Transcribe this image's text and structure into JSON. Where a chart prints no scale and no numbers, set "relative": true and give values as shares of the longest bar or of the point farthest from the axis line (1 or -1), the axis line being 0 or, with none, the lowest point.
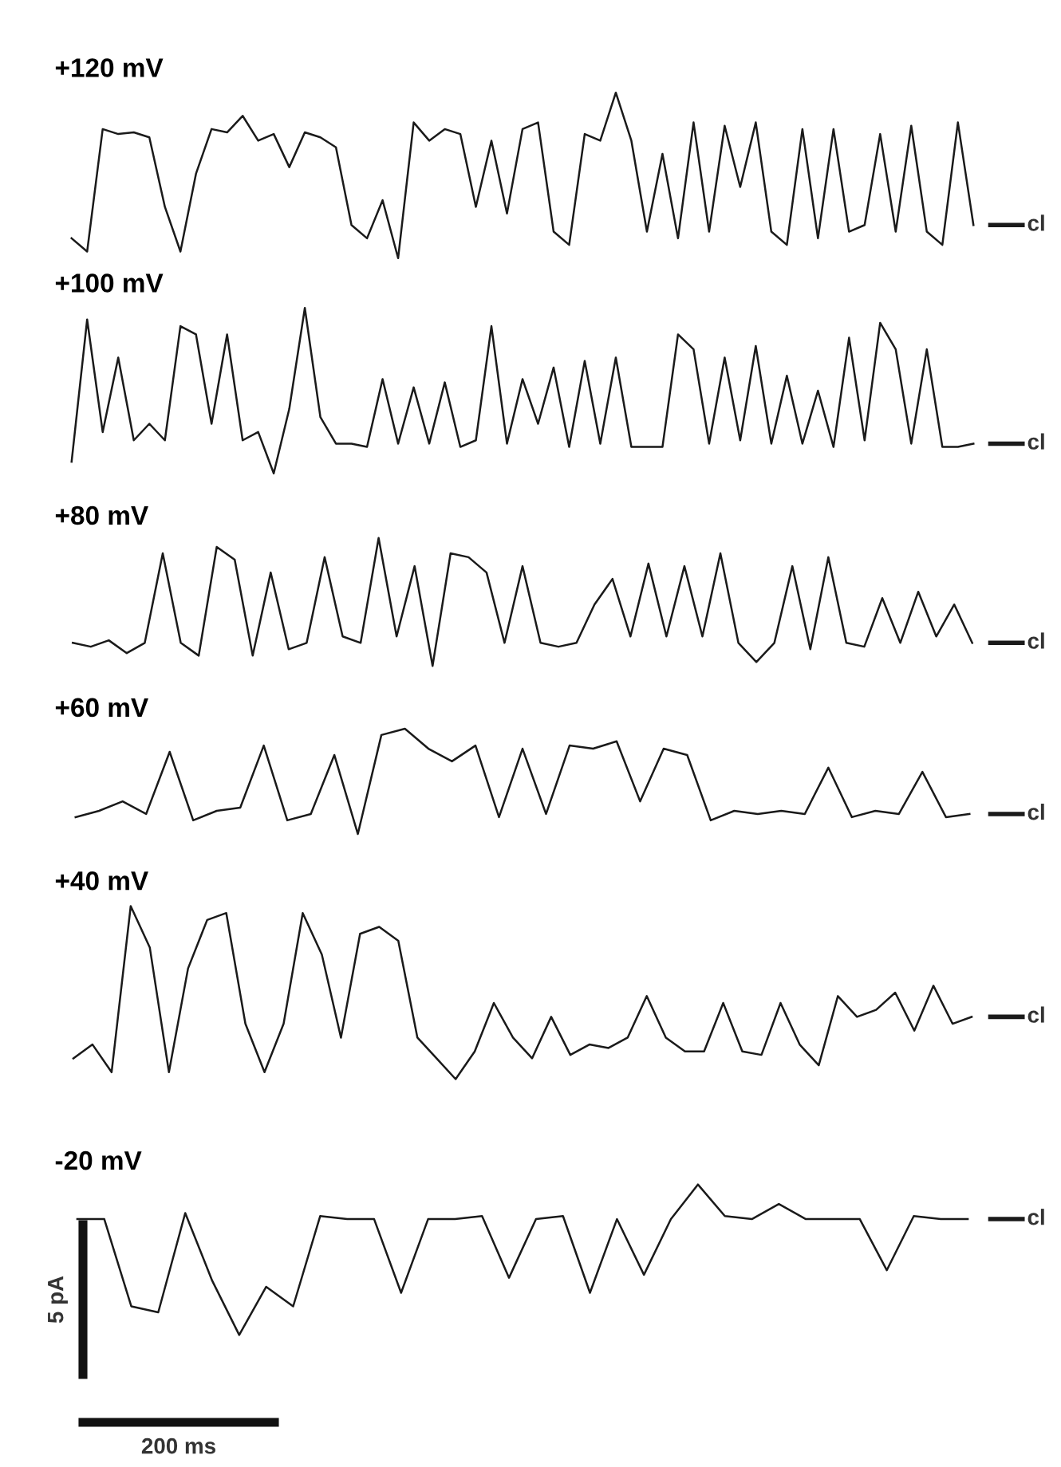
{
  "chart_data": [
    {
      "type": "line",
      "relative": true,
      "title": "+120 mV",
      "annotations": [
        "cl"
      ],
      "categories": [
        null,
        null,
        null,
        null,
        null,
        null,
        null,
        null,
        null,
        null,
        null,
        null,
        null,
        null,
        null,
        null,
        null,
        null,
        null,
        null,
        null,
        null,
        null,
        null,
        null,
        null,
        null,
        null,
        null,
        null,
        null,
        null,
        null,
        null,
        null,
        null,
        null,
        null,
        null,
        null,
        null,
        null,
        null,
        null,
        null,
        null,
        null,
        null,
        null,
        null,
        null,
        null,
        null,
        null,
        null,
        null,
        null,
        null,
        null
      ],
      "series": [
        {
          "color": "#1a1a1a",
          "values": [
            0.12,
            0.04,
            0.78,
            0.75,
            0.76,
            0.73,
            0.31,
            0.04,
            0.51,
            0.78,
            0.76,
            0.86,
            0.71,
            0.75,
            0.55,
            0.76,
            0.73,
            0.67,
            0.2,
            0.12,
            0.35,
            0,
            0.82,
            0.71,
            0.78,
            0.75,
            0.31,
            0.71,
            0.27,
            0.78,
            0.82,
            0.16,
            0.08,
            0.75,
            0.71,
            1.0,
            0.71,
            0.16,
            0.63,
            0.12,
            0.82,
            0.16,
            0.8,
            0.43,
            0.82,
            0.16,
            0.08,
            0.78,
            0.12,
            0.78,
            0.16,
            0.2,
            0.75,
            0.16,
            0.8,
            0.16,
            0.08,
            0.82,
            0.2
          ]
        }
      ]
    },
    {
      "type": "line",
      "relative": true,
      "title": "+100 mV",
      "annotations": [
        "cl"
      ],
      "categories": [
        null,
        null,
        null,
        null,
        null,
        null,
        null,
        null,
        null,
        null,
        null,
        null,
        null,
        null,
        null,
        null,
        null,
        null,
        null,
        null,
        null,
        null,
        null,
        null,
        null,
        null,
        null,
        null,
        null,
        null,
        null,
        null,
        null,
        null,
        null,
        null,
        null,
        null,
        null,
        null,
        null,
        null,
        null,
        null,
        null,
        null,
        null,
        null,
        null,
        null,
        null,
        null,
        null,
        null,
        null,
        null,
        null,
        null,
        null
      ],
      "series": [
        {
          "color": "#1a1a1a",
          "values": [
            0.07,
            0.93,
            0.25,
            0.7,
            0.2,
            0.3,
            0.2,
            0.89,
            0.84,
            0.3,
            0.84,
            0.2,
            0.25,
            0,
            0.39,
            1.0,
            0.34,
            0.18,
            0.18,
            0.16,
            0.57,
            0.18,
            0.52,
            0.18,
            0.55,
            0.16,
            0.2,
            0.89,
            0.18,
            0.57,
            0.3,
            0.64,
            0.16,
            0.68,
            0.18,
            0.7,
            0.16,
            0.16,
            0.16,
            0.84,
            0.75,
            0.18,
            0.7,
            0.2,
            0.77,
            0.18,
            0.59,
            0.18,
            0.5,
            0.16,
            0.82,
            0.2,
            0.91,
            0.75,
            0.18,
            0.75,
            0.16,
            0.16,
            0.18
          ]
        }
      ]
    },
    {
      "type": "line",
      "relative": true,
      "title": "+80 mV",
      "annotations": [
        "cl"
      ],
      "categories": [
        null,
        null,
        null,
        null,
        null,
        null,
        null,
        null,
        null,
        null,
        null,
        null,
        null,
        null,
        null,
        null,
        null,
        null,
        null,
        null,
        null,
        null,
        null,
        null,
        null,
        null,
        null,
        null,
        null,
        null,
        null,
        null,
        null,
        null,
        null,
        null,
        null,
        null,
        null,
        null,
        null,
        null,
        null,
        null,
        null,
        null,
        null,
        null,
        null,
        null,
        null
      ],
      "series": [
        {
          "color": "#1a1a1a",
          "values": [
            0.18,
            0.15,
            0.2,
            0.1,
            0.18,
            0.88,
            0.18,
            0.08,
            0.93,
            0.83,
            0.08,
            0.73,
            0.13,
            0.18,
            0.85,
            0.23,
            0.18,
            1.0,
            0.23,
            0.78,
            0,
            0.88,
            0.85,
            0.73,
            0.18,
            0.78,
            0.18,
            0.15,
            0.18,
            0.48,
            0.68,
            0.23,
            0.8,
            0.23,
            0.78,
            0.23,
            0.88,
            0.18,
            0.03,
            0.18,
            0.78,
            0.13,
            0.85,
            0.18,
            0.15,
            0.53,
            0.18,
            0.58,
            0.23,
            0.48,
            0.18
          ]
        }
      ]
    },
    {
      "type": "line",
      "relative": true,
      "title": "+60 mV",
      "annotations": [
        "cl"
      ],
      "categories": [
        null,
        null,
        null,
        null,
        null,
        null,
        null,
        null,
        null,
        null,
        null,
        null,
        null,
        null,
        null,
        null,
        null,
        null,
        null,
        null,
        null,
        null,
        null,
        null,
        null,
        null,
        null,
        null,
        null,
        null,
        null,
        null,
        null,
        null,
        null,
        null,
        null,
        null,
        null
      ],
      "series": [
        {
          "color": "#1a1a1a",
          "values": [
            0.16,
            0.22,
            0.31,
            0.19,
            0.78,
            0.13,
            0.22,
            0.25,
            0.84,
            0.13,
            0.19,
            0.75,
            0,
            0.94,
            1.0,
            0.81,
            0.69,
            0.84,
            0.16,
            0.81,
            0.19,
            0.84,
            0.81,
            0.88,
            0.31,
            0.81,
            0.75,
            0.13,
            0.22,
            0.19,
            0.22,
            0.19,
            0.63,
            0.16,
            0.22,
            0.19,
            0.59,
            0.16,
            0.19
          ]
        }
      ]
    },
    {
      "type": "line",
      "relative": true,
      "title": "+40 mV",
      "annotations": [
        "cl"
      ],
      "categories": [
        null,
        null,
        null,
        null,
        null,
        null,
        null,
        null,
        null,
        null,
        null,
        null,
        null,
        null,
        null,
        null,
        null,
        null,
        null,
        null,
        null,
        null,
        null,
        null,
        null,
        null,
        null,
        null,
        null,
        null,
        null,
        null,
        null,
        null,
        null,
        null,
        null,
        null,
        null,
        null,
        null,
        null,
        null,
        null,
        null,
        null,
        null,
        null
      ],
      "series": [
        {
          "color": "#1a1a1a",
          "values": [
            0.12,
            0.2,
            0.04,
            1.0,
            0.76,
            0.04,
            0.64,
            0.92,
            0.96,
            0.32,
            0.04,
            0.32,
            0.96,
            0.72,
            0.24,
            0.84,
            0.88,
            0.8,
            0.24,
            0.12,
            0,
            0.16,
            0.44,
            0.24,
            0.12,
            0.36,
            0.14,
            0.2,
            0.18,
            0.24,
            0.48,
            0.24,
            0.16,
            0.16,
            0.44,
            0.16,
            0.14,
            0.44,
            0.2,
            0.08,
            0.48,
            0.36,
            0.4,
            0.5,
            0.28,
            0.54,
            0.32,
            0.36
          ]
        }
      ]
    },
    {
      "type": "line",
      "relative": true,
      "title": "-20 mV",
      "annotations": [
        "cl",
        "5 pA",
        "200 ms"
      ],
      "categories": [
        null,
        null,
        null,
        null,
        null,
        null,
        null,
        null,
        null,
        null,
        null,
        null,
        null,
        null,
        null,
        null,
        null,
        null,
        null,
        null,
        null,
        null,
        null,
        null,
        null,
        null,
        null,
        null,
        null,
        null,
        null,
        null,
        null,
        null
      ],
      "series": [
        {
          "color": "#1a1a1a",
          "values": [
            0.77,
            0.77,
            0.19,
            0.15,
            0.81,
            0.36,
            0,
            0.32,
            0.19,
            0.79,
            0.77,
            0.77,
            0.28,
            0.77,
            0.77,
            0.79,
            0.38,
            0.77,
            0.79,
            0.28,
            0.77,
            0.4,
            0.77,
            1.0,
            0.79,
            0.77,
            0.87,
            0.77,
            0.77,
            0.77,
            0.43,
            0.79,
            0.77,
            0.77
          ]
        }
      ]
    }
  ]
}
